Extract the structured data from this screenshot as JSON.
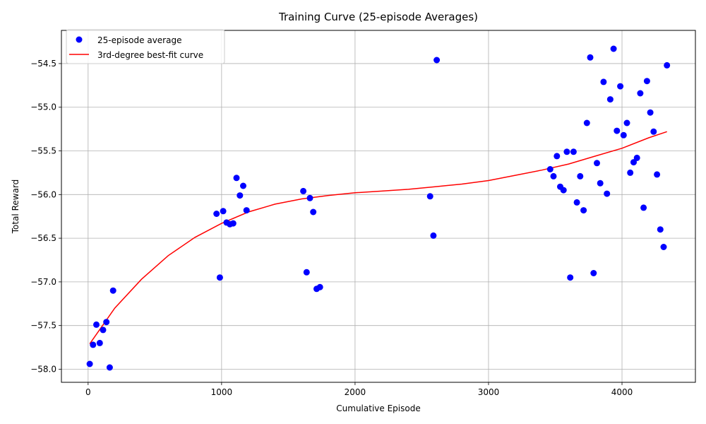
{
  "chart_data": {
    "type": "scatter",
    "title": "Training Curve (25-episode Averages)",
    "xlabel": "Cumulative Episode",
    "ylabel": "Total Reward",
    "xlim": [
      -200,
      4550
    ],
    "ylim": [
      -58.15,
      -54.12
    ],
    "xticks": [
      0,
      1000,
      2000,
      3000,
      4000
    ],
    "yticks": [
      -58.0,
      -57.5,
      -57.0,
      -56.5,
      -56.0,
      -55.5,
      -55.0,
      -54.5
    ],
    "xtick_labels": [
      "0",
      "1000",
      "2000",
      "3000",
      "4000"
    ],
    "ytick_labels": [
      "−58.0",
      "−57.5",
      "−57.0",
      "−56.5",
      "−56.0",
      "−55.5",
      "−55.0",
      "−54.5"
    ],
    "grid": true,
    "legend_position": "top-left",
    "series": [
      {
        "name": "25-episode average",
        "kind": "scatter",
        "color": "#0000ff",
        "points": [
          [
            12,
            -57.94
          ],
          [
            37,
            -57.72
          ],
          [
            62,
            -57.49
          ],
          [
            87,
            -57.7
          ],
          [
            112,
            -57.55
          ],
          [
            137,
            -57.46
          ],
          [
            162,
            -57.98
          ],
          [
            187,
            -57.1
          ],
          [
            962,
            -56.22
          ],
          [
            987,
            -56.95
          ],
          [
            1012,
            -56.19
          ],
          [
            1037,
            -56.32
          ],
          [
            1062,
            -56.34
          ],
          [
            1087,
            -56.33
          ],
          [
            1112,
            -55.81
          ],
          [
            1137,
            -56.01
          ],
          [
            1162,
            -55.9
          ],
          [
            1187,
            -56.18
          ],
          [
            1612,
            -55.96
          ],
          [
            1637,
            -56.89
          ],
          [
            1662,
            -56.04
          ],
          [
            1687,
            -56.2
          ],
          [
            1712,
            -57.08
          ],
          [
            1737,
            -57.06
          ],
          [
            2562,
            -56.02
          ],
          [
            2587,
            -56.47
          ],
          [
            2612,
            -54.46
          ],
          [
            3462,
            -55.71
          ],
          [
            3487,
            -55.79
          ],
          [
            3512,
            -55.56
          ],
          [
            3537,
            -55.91
          ],
          [
            3562,
            -55.95
          ],
          [
            3587,
            -55.51
          ],
          [
            3612,
            -56.95
          ],
          [
            3637,
            -55.51
          ],
          [
            3662,
            -56.09
          ],
          [
            3687,
            -55.79
          ],
          [
            3712,
            -56.18
          ],
          [
            3737,
            -55.18
          ],
          [
            3762,
            -54.43
          ],
          [
            3787,
            -56.9
          ],
          [
            3812,
            -55.64
          ],
          [
            3837,
            -55.87
          ],
          [
            3862,
            -54.71
          ],
          [
            3887,
            -55.99
          ],
          [
            3912,
            -54.91
          ],
          [
            3937,
            -54.33
          ],
          [
            3962,
            -55.27
          ],
          [
            3987,
            -54.76
          ],
          [
            4012,
            -55.32
          ],
          [
            4037,
            -55.18
          ],
          [
            4062,
            -55.75
          ],
          [
            4087,
            -55.63
          ],
          [
            4112,
            -55.58
          ],
          [
            4137,
            -54.84
          ],
          [
            4162,
            -56.15
          ],
          [
            4187,
            -54.7
          ],
          [
            4212,
            -55.06
          ],
          [
            4237,
            -55.28
          ],
          [
            4262,
            -55.77
          ],
          [
            4287,
            -56.4
          ],
          [
            4312,
            -56.6
          ],
          [
            4337,
            -54.52
          ]
        ]
      },
      {
        "name": "3rd-degree best-fit curve",
        "kind": "line",
        "color": "#ff0000",
        "points": [
          [
            12,
            -57.71
          ],
          [
            200,
            -57.3
          ],
          [
            400,
            -56.97
          ],
          [
            600,
            -56.7
          ],
          [
            800,
            -56.49
          ],
          [
            1000,
            -56.33
          ],
          [
            1200,
            -56.2
          ],
          [
            1400,
            -56.11
          ],
          [
            1600,
            -56.05
          ],
          [
            1800,
            -56.01
          ],
          [
            2000,
            -55.98
          ],
          [
            2200,
            -55.96
          ],
          [
            2400,
            -55.94
          ],
          [
            2600,
            -55.91
          ],
          [
            2800,
            -55.88
          ],
          [
            3000,
            -55.84
          ],
          [
            3200,
            -55.78
          ],
          [
            3400,
            -55.72
          ],
          [
            3600,
            -55.65
          ],
          [
            3800,
            -55.56
          ],
          [
            4000,
            -55.47
          ],
          [
            4200,
            -55.35
          ],
          [
            4337,
            -55.28
          ]
        ]
      }
    ]
  }
}
